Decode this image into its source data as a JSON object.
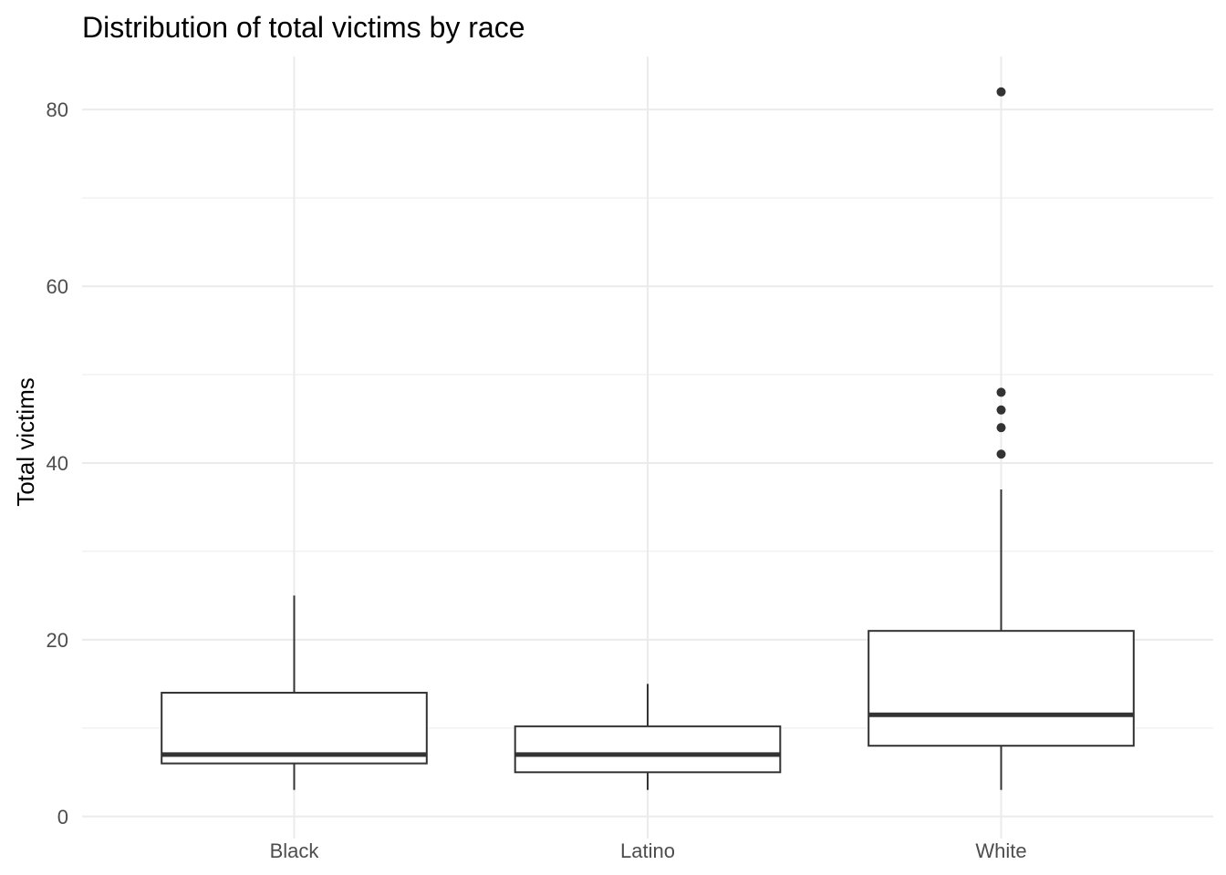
{
  "chart_data": {
    "type": "boxplot",
    "title": "Distribution of total victims by race",
    "xlabel": "",
    "ylabel": "Total victims",
    "categories": [
      "Black",
      "Latino",
      "White"
    ],
    "ylim": [
      -2.5,
      86
    ],
    "yticks": [
      0,
      20,
      40,
      60,
      80
    ],
    "grid": true,
    "legend": "none",
    "boxes": [
      {
        "category": "Black",
        "whisker_low": 3,
        "q1": 6,
        "median": 7,
        "q3": 14,
        "whisker_high": 25,
        "outliers": []
      },
      {
        "category": "Latino",
        "whisker_low": 3,
        "q1": 5,
        "median": 7,
        "q3": 10.2,
        "whisker_high": 15,
        "outliers": []
      },
      {
        "category": "White",
        "whisker_low": 3,
        "q1": 8,
        "median": 11.5,
        "q3": 21,
        "whisker_high": 37,
        "outliers": [
          41,
          44,
          46,
          48,
          82
        ]
      }
    ],
    "colors": {
      "box_stroke": "#333333",
      "box_fill": "#ffffff",
      "grid": "#ebebeb",
      "tick_text": "#4d4d4d"
    }
  }
}
